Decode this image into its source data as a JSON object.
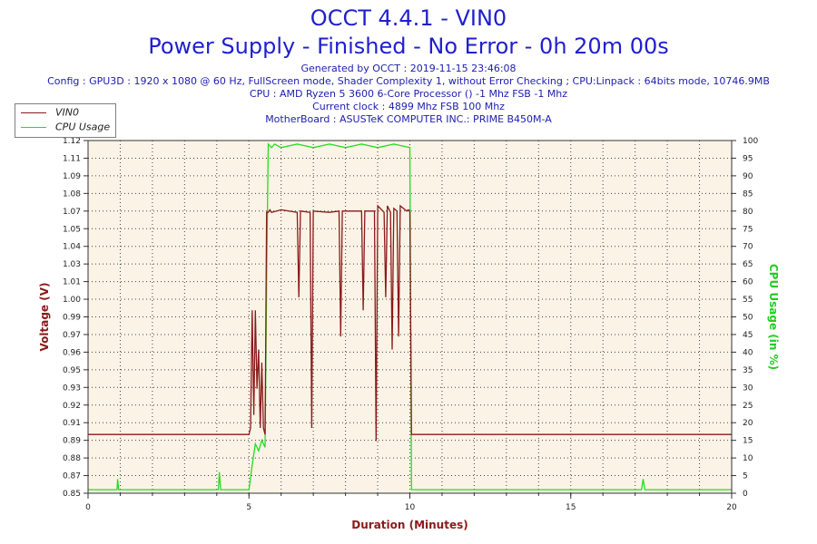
{
  "header": {
    "title": "OCCT 4.4.1 - VIN0",
    "subtitle": "Power Supply - Finished - No Error - 0h 20m 00s",
    "info_lines": [
      "Generated by OCCT : 2019-11-15 23:46:08",
      "Config : GPU3D : 1920 x 1080 @ 60 Hz, FullScreen mode, Shader Complexity 1, without Error Checking ; CPU:Linpack : 64bits mode, 10746.9MB",
      "CPU : AMD Ryzen 5 3600 6-Core Processor () -1 Mhz FSB -1 Mhz",
      "Current clock : 4899 Mhz FSB 100 Mhz",
      "MotherBoard : ASUSTeK COMPUTER INC.: PRIME B450M-A"
    ]
  },
  "colors": {
    "vin0": "#8b1a1a",
    "cpu": "#22dd22",
    "title": "#1f1fd0",
    "plot_bg": "#fbf3e6"
  },
  "chart_data": {
    "type": "line",
    "xlabel": "Duration (Minutes)",
    "ylabel_left": "Voltage (V)",
    "ylabel_right": "CPU Usage (in %)",
    "xlim": [
      0,
      20
    ],
    "ylim_left": [
      0.85,
      1.12
    ],
    "ylim_right": [
      0,
      100
    ],
    "x_ticks": [
      0,
      5,
      10,
      15,
      20
    ],
    "y_left_ticks": [
      0.85,
      0.87,
      0.88,
      0.89,
      0.91,
      0.92,
      0.93,
      0.95,
      0.96,
      0.97,
      0.99,
      1.0,
      1.01,
      1.03,
      1.04,
      1.05,
      1.07,
      1.08,
      1.09,
      1.11,
      1.12
    ],
    "y_right_ticks": [
      0,
      5,
      10,
      15,
      20,
      25,
      30,
      35,
      40,
      45,
      50,
      55,
      60,
      65,
      70,
      75,
      80,
      85,
      90,
      95,
      100
    ],
    "grid": true,
    "legend_position": "top-left",
    "series": [
      {
        "name": "VIN0",
        "axis": "left",
        "x": [
          0,
          5.0,
          5.05,
          5.1,
          5.15,
          5.2,
          5.25,
          5.3,
          5.35,
          5.4,
          5.45,
          5.5,
          5.55,
          5.6,
          5.65,
          5.7,
          6.0,
          6.5,
          6.55,
          6.6,
          6.9,
          6.95,
          7.0,
          7.5,
          7.8,
          7.85,
          7.9,
          8.5,
          8.55,
          8.6,
          8.9,
          8.95,
          9.0,
          9.2,
          9.25,
          9.3,
          9.4,
          9.45,
          9.5,
          9.6,
          9.65,
          9.7,
          9.9,
          9.95,
          10.0,
          10.05,
          20
        ],
        "values": [
          0.895,
          0.895,
          0.9,
          0.99,
          0.91,
          0.99,
          0.93,
          0.96,
          0.9,
          0.95,
          0.9,
          0.895,
          1.065,
          1.065,
          1.067,
          1.065,
          1.067,
          1.065,
          1.0,
          1.066,
          1.065,
          0.9,
          1.066,
          1.065,
          1.066,
          0.97,
          1.066,
          1.066,
          0.99,
          1.066,
          1.066,
          0.89,
          1.07,
          1.065,
          1.0,
          1.07,
          1.065,
          0.96,
          1.068,
          1.066,
          0.97,
          1.07,
          1.066,
          1.067,
          1.066,
          0.895,
          0.895
        ]
      },
      {
        "name": "CPU Usage",
        "axis": "right",
        "x": [
          0,
          0.9,
          0.92,
          0.95,
          2.0,
          4.05,
          4.08,
          4.12,
          5.0,
          5.1,
          5.2,
          5.3,
          5.4,
          5.5,
          5.55,
          5.6,
          5.7,
          5.8,
          6.0,
          6.5,
          7.0,
          7.5,
          8.0,
          8.5,
          9.0,
          9.5,
          10.0,
          10.02,
          10.05,
          11.0,
          13.0,
          15.0,
          17.2,
          17.25,
          17.3,
          19.0,
          20
        ],
        "values": [
          1,
          1,
          4,
          1,
          1,
          1,
          6,
          1,
          1,
          8,
          14,
          12,
          15,
          13,
          60,
          99,
          98,
          99,
          98,
          99,
          98,
          99,
          98,
          99,
          98,
          99,
          98,
          60,
          1,
          1,
          1,
          1,
          1,
          4,
          1,
          1,
          1
        ]
      }
    ]
  }
}
